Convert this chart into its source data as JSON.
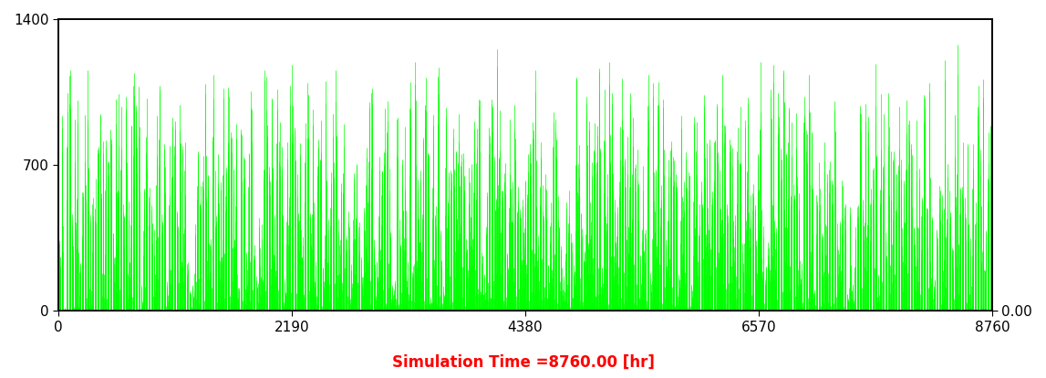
{
  "title": "Simulation Time =8760.00 [hr]",
  "title_color": "#ff0000",
  "title_fontsize": 12,
  "bar_color": "#00ff00",
  "background_color": "#ffffff",
  "xlim": [
    0,
    8760
  ],
  "ylim_left": [
    0,
    1400
  ],
  "ylim_right": [
    0,
    1400
  ],
  "yticks_left": [
    0,
    700,
    1400
  ],
  "xticks": [
    0,
    2190,
    4380,
    6570,
    8760
  ],
  "n_hours": 8760,
  "max_radiation": 1400,
  "line_width": 0.5
}
